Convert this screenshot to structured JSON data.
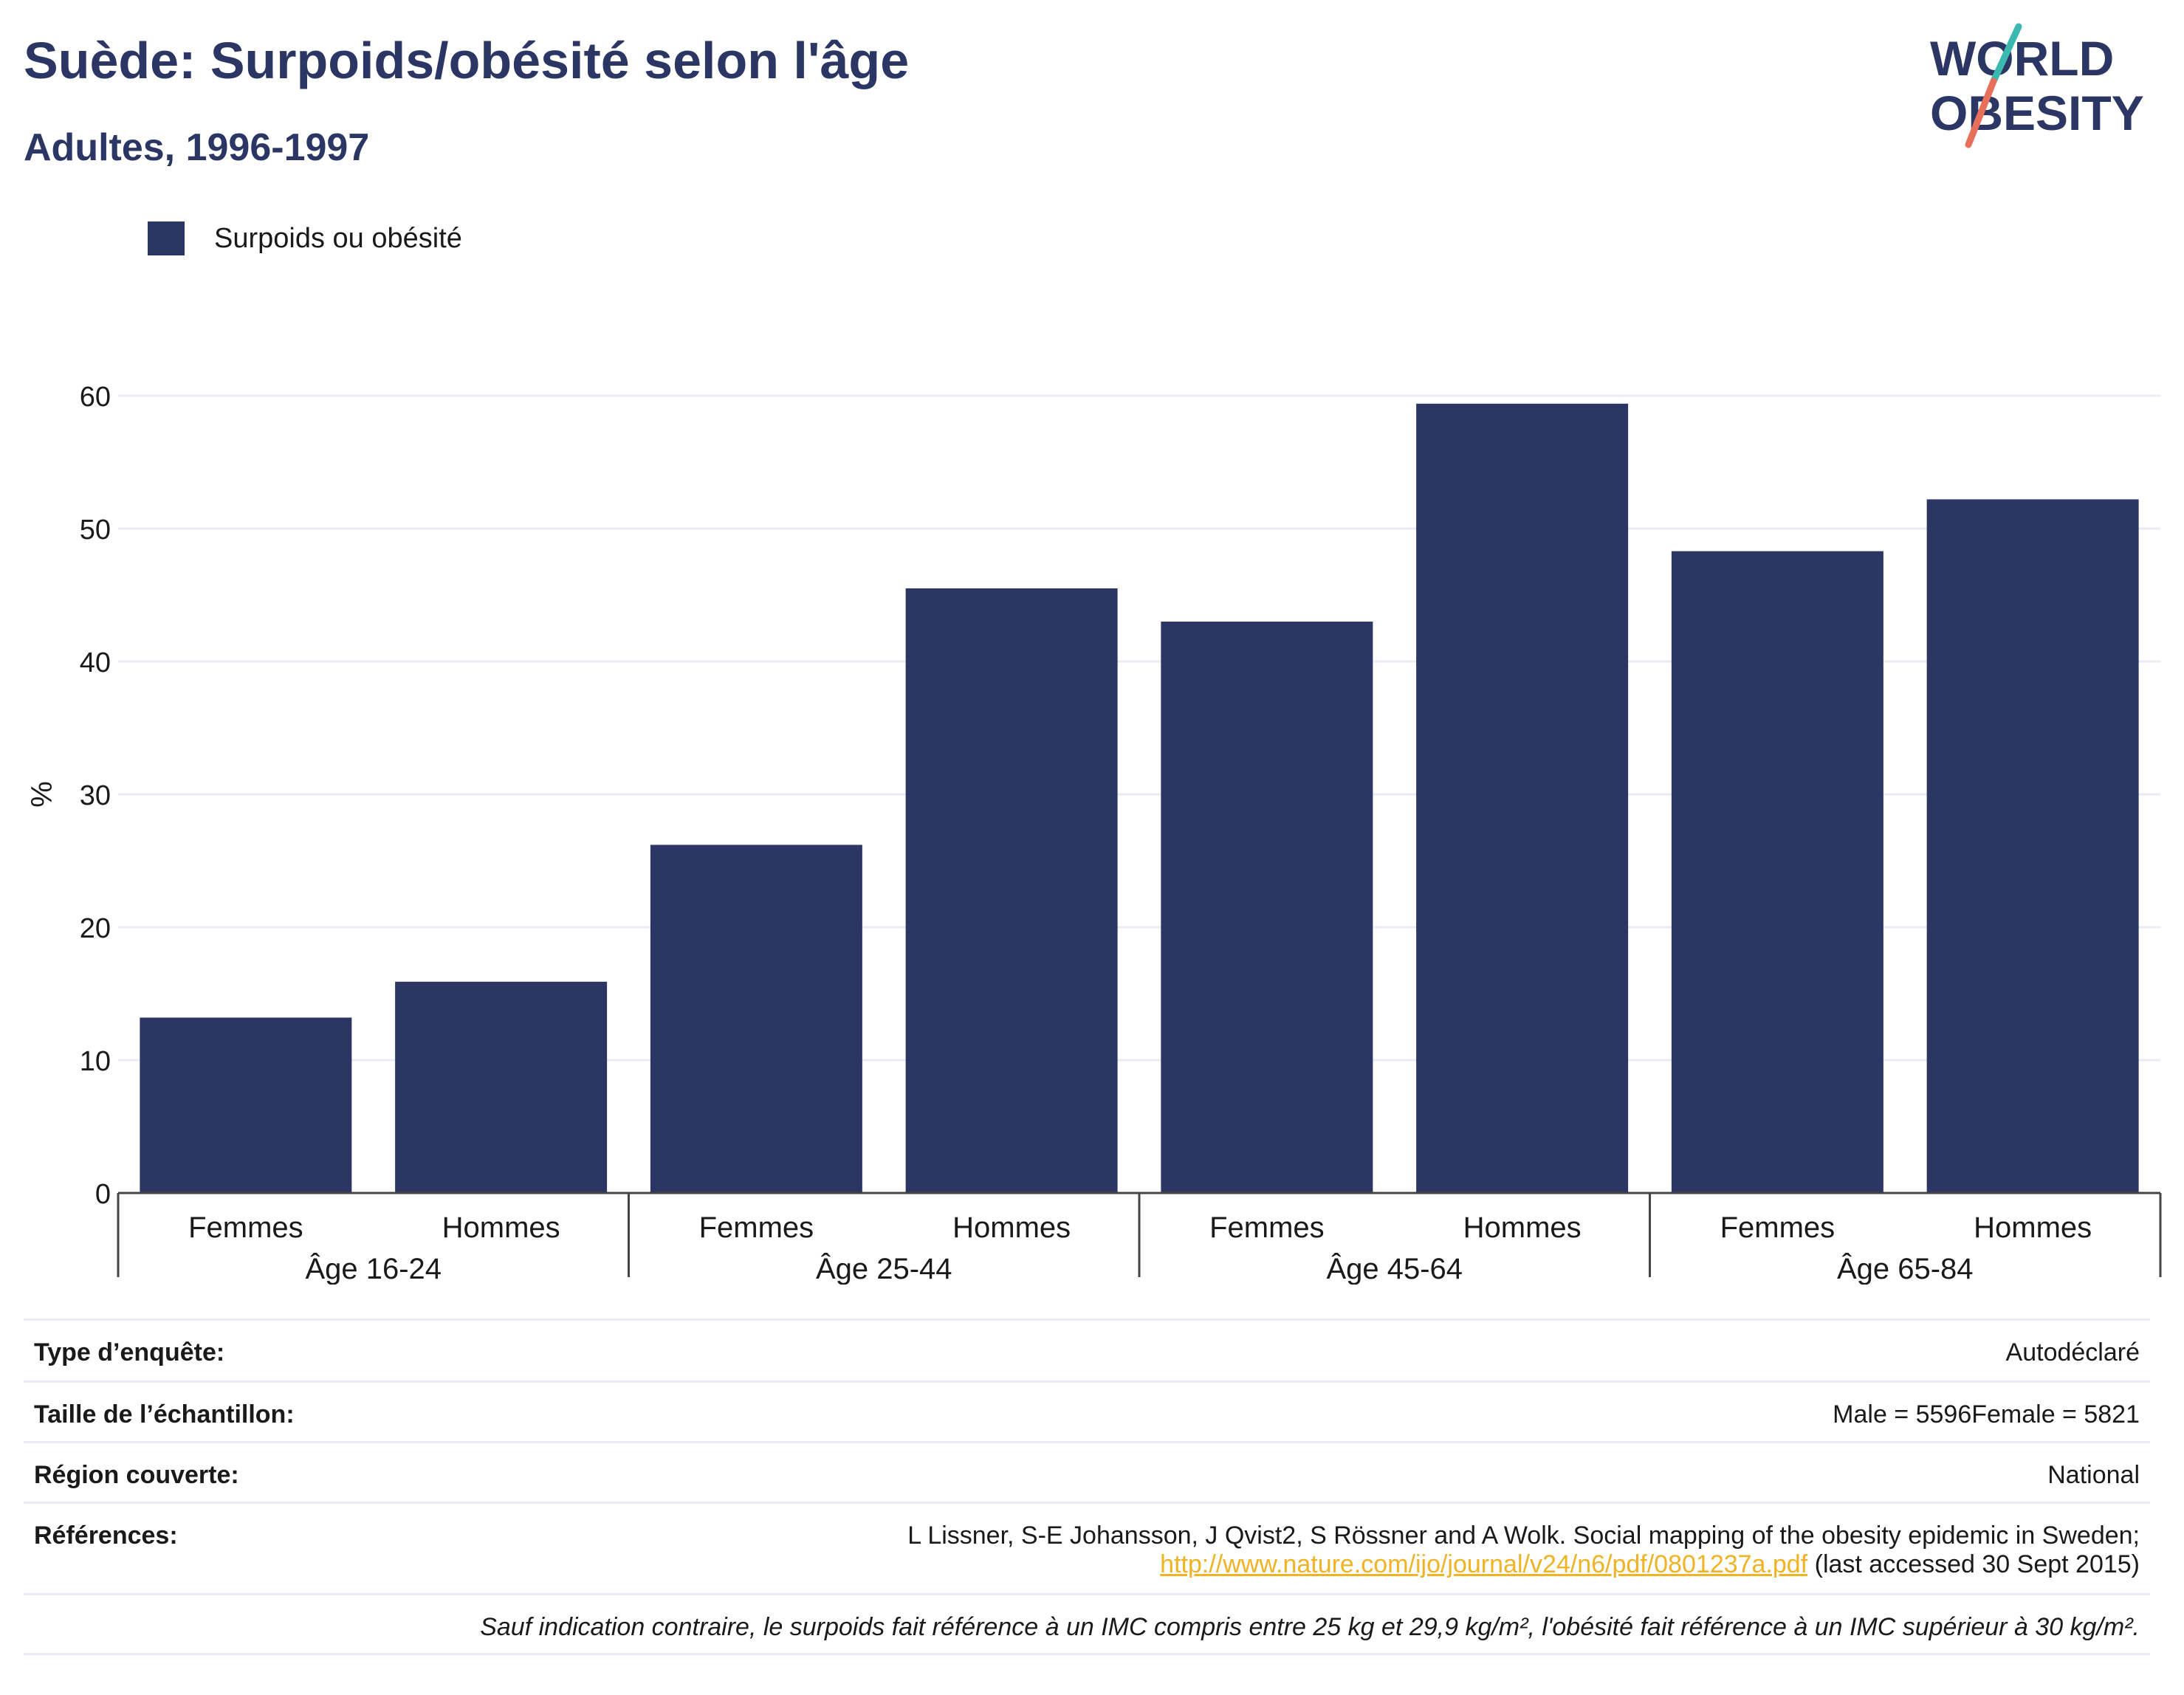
{
  "header": {
    "title": "Suède: Surpoids/obésité selon l'âge",
    "subtitle": "Adultes, 1996-1997"
  },
  "logo": {
    "line1": "WORLD",
    "line2": "OBESITY",
    "colors": {
      "text": "#2b3664",
      "slash_top": "#3bb8b0",
      "slash_bottom": "#e8705a"
    }
  },
  "colors": {
    "bar": "#2b3664",
    "grid": "#e9ecf4",
    "axis": "#444444"
  },
  "chart_data": {
    "type": "bar",
    "title": "Suède: Surpoids/obésité selon l'âge",
    "subtitle": "Adultes, 1996-1997",
    "ylabel": "%",
    "ylim": [
      0,
      60
    ],
    "yticks": [
      "0",
      "10",
      "20",
      "30",
      "40",
      "50",
      "60"
    ],
    "grid": true,
    "legend_position": "top-left",
    "groups": [
      "Âge 16-24",
      "Âge 25-44",
      "Âge 45-64",
      "Âge 65-84"
    ],
    "categories": [
      "Femmes",
      "Hommes",
      "Femmes",
      "Hommes",
      "Femmes",
      "Hommes",
      "Femmes",
      "Hommes"
    ],
    "series": [
      {
        "name": "Surpoids ou obésité",
        "values": [
          13.2,
          15.9,
          26.2,
          45.5,
          43.0,
          59.4,
          48.3,
          52.2
        ]
      }
    ]
  },
  "info": {
    "survey_type_label": "Type d’enquête:",
    "survey_type_value": "Autodéclaré",
    "sample_size_label": "Taille de l’échantillon:",
    "sample_size_value": "Male = 5596Female = 5821",
    "region_label": "Région couverte:",
    "region_value": "National",
    "references_label": "Références:",
    "references_text": "L Lissner, S-E Johansson, J Qvist2, S Rössner and A Wolk. Social mapping of the obesity epidemic in Sweden;",
    "references_link": "http://www.nature.com/ijo/journal/v24/n6/pdf/0801237a.pdf",
    "references_accessed": " (last accessed 30 Sept 2015)",
    "note": "Sauf indication contraire, le surpoids fait référence à un IMC compris entre 25 kg et 29,9 kg/m², l'obésité fait référence à un IMC supérieur à 30 kg/m²."
  }
}
